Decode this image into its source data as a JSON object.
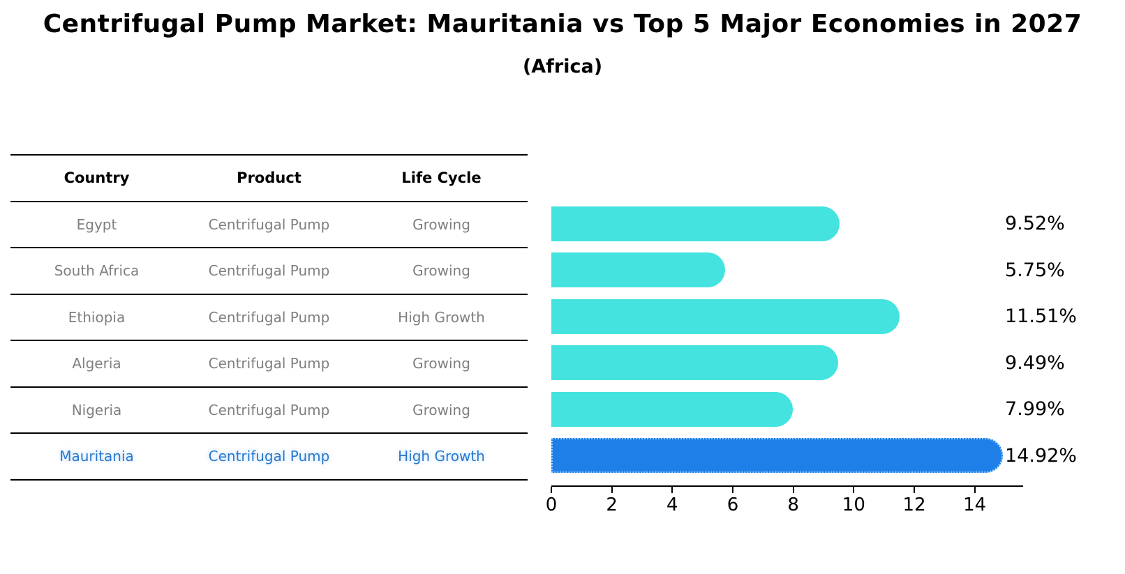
{
  "title": "Centrifugal Pump Market: Mauritania vs Top 5 Major Economies in 2027",
  "subtitle": "(Africa)",
  "table": {
    "headers": [
      "Country",
      "Product",
      "Life Cycle"
    ],
    "rows": [
      {
        "country": "Egypt",
        "product": "Centrifugal Pump",
        "life_cycle": "Growing",
        "highlight": false
      },
      {
        "country": "South Africa",
        "product": "Centrifugal Pump",
        "life_cycle": "Growing",
        "highlight": false
      },
      {
        "country": "Ethiopia",
        "product": "Centrifugal Pump",
        "life_cycle": "High Growth",
        "highlight": false
      },
      {
        "country": "Algeria",
        "product": "Centrifugal Pump",
        "life_cycle": "Growing",
        "highlight": false
      },
      {
        "country": "Nigeria",
        "product": "Centrifugal Pump",
        "life_cycle": "Growing",
        "highlight": false
      },
      {
        "country": "Mauritania",
        "product": "Centrifugal Pump",
        "life_cycle": "High Growth",
        "highlight": true
      }
    ]
  },
  "chart_data": {
    "type": "bar",
    "orientation": "horizontal",
    "categories": [
      "Egypt",
      "South Africa",
      "Ethiopia",
      "Algeria",
      "Nigeria",
      "Mauritania"
    ],
    "values": [
      9.52,
      5.75,
      11.51,
      9.49,
      7.99,
      14.92
    ],
    "value_labels": [
      "9.52%",
      "5.75%",
      "11.51%",
      "9.49%",
      "7.99%",
      "14.92%"
    ],
    "xticks": [
      0,
      2,
      4,
      6,
      8,
      10,
      12,
      14
    ],
    "xlim": [
      0,
      15.6
    ],
    "highlight_index": 5,
    "grid": false,
    "legend": null,
    "title": "Centrifugal Pump Market: Mauritania vs Top 5 Major Economies in 2027",
    "subtitle": "(Africa)"
  },
  "colors": {
    "bar_color": "#45E3DF",
    "highlight_bar_color": "#1E7FE8",
    "highlight_border_color": "#9BCCF9",
    "highlight_text_color": "#2878CD",
    "muted_text_color": "#7f7f7f",
    "text_color": "#000000"
  }
}
